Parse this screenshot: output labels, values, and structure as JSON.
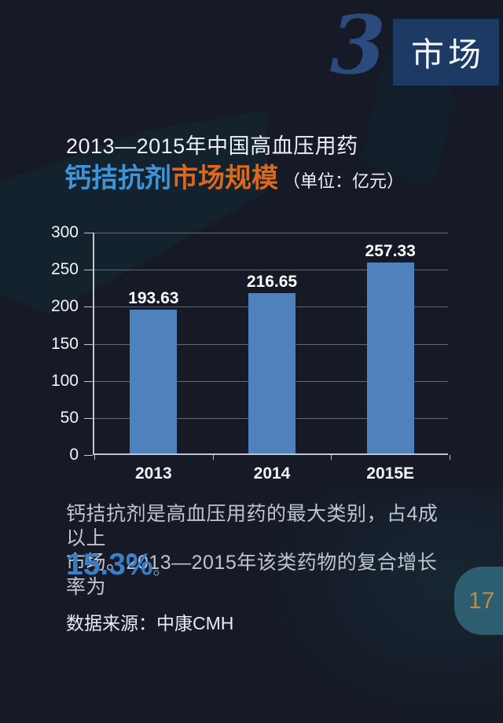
{
  "header": {
    "section_number": "3",
    "section_title": "市场"
  },
  "title": {
    "line1": "2013—2015年中国高血压用药",
    "highlight_blue": "钙拮抗剂",
    "highlight_orange": "市场规模",
    "unit": "（单位：亿元）"
  },
  "chart_data": {
    "type": "bar",
    "title": "2013—2015年中国高血压用药钙拮抗剂市场规模",
    "unit": "亿元",
    "categories": [
      "2013",
      "2014",
      "2015E"
    ],
    "values": [
      193.63,
      216.65,
      257.33
    ],
    "value_labels": [
      "193.63",
      "216.65",
      "257.33"
    ],
    "xlabel": "",
    "ylabel": "",
    "ylim": [
      0,
      300
    ],
    "ytick_step": 50,
    "grid": true,
    "legend": "none",
    "bar_color": "#4f81bd"
  },
  "commentary": {
    "lines": [
      "钙拮抗剂是高血压用药的最大类别，占4成以上",
      "市场。2013—2015年该类药物的复合增长率为"
    ],
    "growth_rate": "15.3%",
    "period": "。"
  },
  "source": {
    "label": "数据来源：中康CMH"
  },
  "page": {
    "number": "17"
  },
  "colors": {
    "background": "#151a26",
    "accent_blue": "#3f93d9",
    "accent_orange": "#dd671c",
    "growth_blue": "#3a7dca",
    "bar_blue": "#4f81bd",
    "header_box_blue": "#1d3a64",
    "big_number_blue": "#2b4b7e",
    "badge_teal": "#2c5e70",
    "badge_number_orange": "#c28a41"
  }
}
